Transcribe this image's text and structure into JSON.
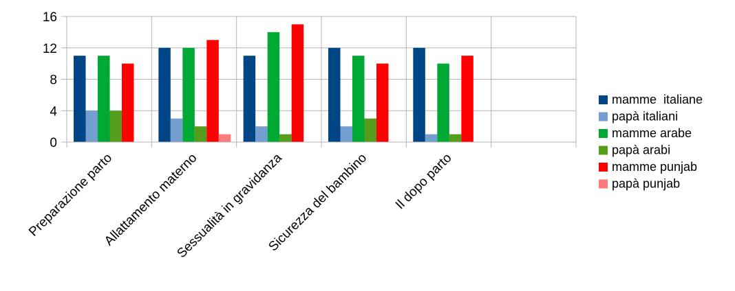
{
  "chart_data": {
    "type": "bar",
    "title": "",
    "xlabel": "",
    "ylabel": "",
    "ylim": [
      0,
      16
    ],
    "yticks": [
      0,
      4,
      8,
      12,
      16
    ],
    "grid": true,
    "legend_position": "right",
    "categories": [
      "Preparazione parto",
      "Allattamento materno",
      "Sessualità in gravidanza",
      "Sicurezza del bambino",
      "Il dopo parto",
      ""
    ],
    "series": [
      {
        "name": "mamme  italiane",
        "color": "#004586",
        "values": [
          11,
          12,
          11,
          12,
          12,
          null
        ]
      },
      {
        "name": "papà italiani",
        "color": "#729fcf",
        "values": [
          4,
          3,
          2,
          2,
          1,
          null
        ]
      },
      {
        "name": "mamme arabe",
        "color": "#00a933",
        "values": [
          11,
          12,
          14,
          11,
          10,
          null
        ]
      },
      {
        "name": "papà arabi",
        "color": "#579d1c",
        "values": [
          4,
          2,
          1,
          3,
          1,
          null
        ]
      },
      {
        "name": "mamme punjab",
        "color": "#ff0000",
        "values": [
          10,
          13,
          15,
          10,
          11,
          null
        ]
      },
      {
        "name": "papà punjab",
        "color": "#ff7b7b",
        "values": [
          0,
          1,
          0,
          0,
          0,
          null
        ]
      }
    ]
  }
}
